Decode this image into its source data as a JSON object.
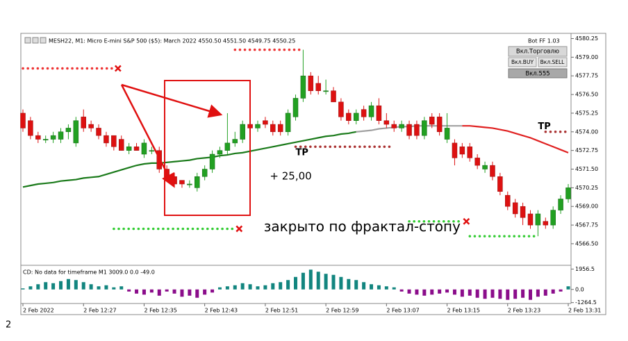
{
  "window": {
    "symbol_line": "MESH22, M1:  Micro E-mini S&P 500 ($5): March 2022  4550.50 4551.50 4549.75 4550.25",
    "bot_label": "Bot FF 1.03",
    "buttons": [
      "Вкл.Торговлю",
      "Вкл.BUY",
      "Вкл.SELL",
      "Вкл.555"
    ],
    "indicator_label": "CD: No data for timeframe M1 3009.0 0.0 -49.0",
    "footer": "2"
  },
  "chart_data": {
    "type": "candlestick",
    "up_color": "#22a022",
    "down_color": "#dd1111",
    "xlim": [
      0,
      72
    ],
    "xticks": [
      {
        "value": 0,
        "label": "2 Feb 2022"
      },
      {
        "value": 8,
        "label": "2 Feb 12:27"
      },
      {
        "value": 16,
        "label": "2 Feb 12:35"
      },
      {
        "value": 24,
        "label": "2 Feb 12:43"
      },
      {
        "value": 32,
        "label": "2 Feb 12:51"
      },
      {
        "value": 40,
        "label": "2 Feb 12:59"
      },
      {
        "value": 48,
        "label": "2 Feb 13:07"
      },
      {
        "value": 56,
        "label": "2 Feb 13:15"
      },
      {
        "value": 64,
        "label": "2 Feb 13:23"
      },
      {
        "value": 72,
        "label": "2 Feb 13:31"
      }
    ],
    "ylim": [
      4565.1,
      4580.6
    ],
    "yticks": [
      4580.25,
      {
        "value": 4579,
        "label": "4579.00"
      },
      4577.75,
      {
        "value": 4576.5,
        "label": "4576.50"
      },
      4575.25,
      {
        "value": 4574,
        "label": "4574.00"
      },
      4572.75,
      {
        "value": 4571.5,
        "label": "4571.50"
      },
      4570.25,
      {
        "value": 4569,
        "label": "4569.00"
      },
      4567.75,
      {
        "value": 4566.5,
        "label": "4566.50"
      }
    ],
    "candles": [
      [
        4575.25,
        4575.5,
        4574.0,
        4574.25
      ],
      [
        4574.75,
        4575.0,
        4573.5,
        4573.75
      ],
      [
        4573.75,
        4574.0,
        4573.25,
        4573.5
      ],
      [
        4573.5,
        4573.75,
        4573.25,
        4573.5
      ],
      [
        4573.5,
        4574.0,
        4573.25,
        4573.75
      ],
      [
        4573.5,
        4574.25,
        4573.25,
        4574.0
      ],
      [
        4574.0,
        4574.5,
        4573.5,
        4574.25
      ],
      [
        4573.25,
        4575.0,
        4573.0,
        4574.75
      ],
      [
        4575.0,
        4575.5,
        4574.0,
        4574.25
      ],
      [
        4574.5,
        4574.75,
        4574.0,
        4574.25
      ],
      [
        4574.25,
        4574.5,
        4573.5,
        4573.75
      ],
      [
        4573.75,
        4574.0,
        4573.0,
        4573.25
      ],
      [
        4573.75,
        4573.75,
        4572.75,
        4573.0
      ],
      [
        4573.5,
        4573.75,
        4572.75,
        4572.75
      ],
      [
        4572.75,
        4573.25,
        4572.5,
        4573.0
      ],
      [
        4573.0,
        4573.25,
        4572.75,
        4572.75
      ],
      [
        4572.5,
        4573.5,
        4572.25,
        4573.25
      ],
      [
        4572.75,
        4573.0,
        4572.5,
        4572.75
      ],
      [
        4572.75,
        4573.0,
        4571.25,
        4571.5
      ],
      [
        4571.5,
        4571.75,
        4571.0,
        4571.0
      ],
      [
        4571.0,
        4571.25,
        4570.25,
        4570.5
      ],
      [
        4570.75,
        4570.75,
        4570.25,
        4570.5
      ],
      [
        4570.5,
        4570.75,
        4570.25,
        4570.5
      ],
      [
        4570.25,
        4571.25,
        4570.0,
        4571.0
      ],
      [
        4571.0,
        4571.75,
        4570.75,
        4571.5
      ],
      [
        4571.5,
        4572.75,
        4571.25,
        4572.5
      ],
      [
        4572.5,
        4573.0,
        4572.25,
        4572.75
      ],
      [
        4572.75,
        4575.25,
        4572.5,
        4573.25
      ],
      [
        4573.25,
        4574.0,
        4573.0,
        4573.5
      ],
      [
        4573.5,
        4574.75,
        4573.25,
        4574.5
      ],
      [
        4574.5,
        4574.75,
        4574.0,
        4574.25
      ],
      [
        4574.25,
        4574.75,
        4574.0,
        4574.5
      ],
      [
        4574.75,
        4575.0,
        4574.25,
        4574.5
      ],
      [
        4574.5,
        4574.75,
        4573.75,
        4574.0
      ],
      [
        4574.5,
        4574.75,
        4573.75,
        4574.0
      ],
      [
        4574.0,
        4575.5,
        4573.75,
        4575.25
      ],
      [
        4575.0,
        4576.5,
        4574.75,
        4576.25
      ],
      [
        4576.25,
        4579.5,
        4576.0,
        4577.75
      ],
      [
        4577.75,
        4578.0,
        4576.5,
        4576.75
      ],
      [
        4577.25,
        4577.75,
        4576.5,
        4576.75
      ],
      [
        4576.75,
        4577.5,
        4576.5,
        4576.75
      ],
      [
        4576.75,
        4577.0,
        4576.0,
        4576.0
      ],
      [
        4576.0,
        4576.25,
        4574.75,
        4575.0
      ],
      [
        4575.25,
        4575.5,
        4574.5,
        4574.75
      ],
      [
        4574.75,
        4575.5,
        4574.5,
        4575.25
      ],
      [
        4575.5,
        4575.75,
        4574.75,
        4575.0
      ],
      [
        4575.0,
        4576.0,
        4574.75,
        4575.75
      ],
      [
        4575.75,
        4576.25,
        4574.5,
        4574.75
      ],
      [
        4574.75,
        4575.25,
        4574.25,
        4574.5
      ],
      [
        4574.5,
        4574.75,
        4574.0,
        4574.25
      ],
      [
        4574.25,
        4574.75,
        4574.0,
        4574.5
      ],
      [
        4574.5,
        4574.75,
        4573.5,
        4573.75
      ],
      [
        4574.5,
        4574.75,
        4573.5,
        4573.75
      ],
      [
        4573.75,
        4575.0,
        4573.5,
        4574.75
      ],
      [
        4575.0,
        4575.25,
        4574.25,
        4574.5
      ],
      [
        4575.0,
        4575.25,
        4573.75,
        4574.0
      ],
      [
        4573.5,
        4575.25,
        4573.25,
        4574.25
      ],
      [
        4573.25,
        4573.5,
        4571.75,
        4572.25
      ],
      [
        4573.0,
        4573.25,
        4572.25,
        4572.5
      ],
      [
        4573.0,
        4573.25,
        4572.0,
        4572.25
      ],
      [
        4572.25,
        4572.5,
        4571.5,
        4571.75
      ],
      [
        4571.5,
        4572.0,
        4571.25,
        4571.75
      ],
      [
        4571.75,
        4572.0,
        4570.75,
        4571.0
      ],
      [
        4571.0,
        4571.25,
        4569.75,
        4570.0
      ],
      [
        4569.75,
        4570.0,
        4568.75,
        4569.0
      ],
      [
        4569.25,
        4569.5,
        4568.25,
        4568.5
      ],
      [
        4569.0,
        4569.25,
        4567.75,
        4568.25
      ],
      [
        4568.5,
        4568.75,
        4567.5,
        4567.75
      ],
      [
        4567.75,
        4568.75,
        4567.0,
        4568.5
      ],
      [
        4568.0,
        4568.25,
        4567.5,
        4567.75
      ],
      [
        4567.75,
        4569.0,
        4567.5,
        4568.75
      ],
      [
        4568.75,
        4569.75,
        4568.5,
        4569.5
      ],
      [
        4569.5,
        4570.5,
        4569.25,
        4570.25
      ]
    ],
    "ma": {
      "values": [
        4570.3,
        4570.4,
        4570.5,
        4570.55,
        4570.6,
        4570.7,
        4570.75,
        4570.8,
        4570.9,
        4570.95,
        4571.0,
        4571.15,
        4571.3,
        4571.45,
        4571.6,
        4571.75,
        4571.85,
        4571.9,
        4571.9,
        4571.95,
        4572.0,
        4572.05,
        4572.1,
        4572.2,
        4572.25,
        4572.3,
        4572.4,
        4572.45,
        4572.55,
        4572.6,
        4572.7,
        4572.8,
        4572.9,
        4573.0,
        4573.1,
        4573.2,
        4573.3,
        4573.4,
        4573.5,
        4573.6,
        4573.7,
        4573.75,
        4573.85,
        4573.9,
        4574.0,
        4574.05,
        4574.1,
        4574.2,
        4574.25,
        4574.3,
        4574.35,
        4574.35,
        4574.4,
        4574.4,
        4574.4,
        4574.4,
        4574.4,
        4574.4,
        4574.4,
        4574.4,
        4574.35,
        4574.3,
        4574.25,
        4574.15,
        4574.05,
        4573.9,
        4573.75,
        4573.6,
        4573.4,
        4573.2,
        4573.0,
        4572.8,
        4572.6
      ],
      "color_changes": [
        {
          "from": 0,
          "color": "#1a7a1a"
        },
        {
          "from": 44,
          "color": "#a0a0a0"
        },
        {
          "from": 58,
          "color": "#e02020"
        }
      ]
    },
    "levels": [
      {
        "price": 4578.25,
        "from": 0,
        "to": 12,
        "color": "#ee3333",
        "end_marker": "cross"
      },
      {
        "price": 4579.5,
        "from": 28,
        "to": 37,
        "color": "#ee3333",
        "end_marker": "none"
      },
      {
        "price": 4567.5,
        "from": 12,
        "to": 28,
        "color": "#33cc33",
        "end_marker": "cross"
      },
      {
        "price": 4573.0,
        "from": 36,
        "to": 49,
        "color": "#aa3333",
        "end_marker": "none"
      },
      {
        "price": 4574.0,
        "from": 69,
        "to": 72,
        "color": "#aa3333",
        "end_marker": "none"
      },
      {
        "price": 4568.0,
        "from": 51,
        "to": 58,
        "color": "#33cc33",
        "end_marker": "cross"
      },
      {
        "price": 4567.0,
        "from": 59,
        "to": 68,
        "color": "#33cc33",
        "end_marker": "none"
      }
    ],
    "annotations": [
      {
        "text": "TP",
        "index": 36,
        "price": 4572.6,
        "color": "#8b1a1a",
        "size": 13
      },
      {
        "text": "TP",
        "index": 68,
        "price": 4574.35,
        "color": "#8b1a1a",
        "size": 13
      },
      {
        "text": "+ 25,00",
        "index": 32.6,
        "price": 4571.0,
        "color": "#dd1111",
        "size": 15
      },
      {
        "text": "закрыто по фрактал-стопу",
        "index": 31.8,
        "price": 4567.6,
        "color": "#dd1111",
        "size": 20
      }
    ],
    "indicator": {
      "ylim": [
        -1350,
        2050
      ],
      "yticks": [
        1956.5,
        {
          "value": 0,
          "label": "0.0"
        },
        -1264.5
      ],
      "pos_color": "#12857f",
      "neg_color": "#8b0d8b",
      "values": [
        100,
        300,
        500,
        700,
        600,
        800,
        1000,
        900,
        700,
        500,
        300,
        400,
        200,
        300,
        -200,
        -400,
        -500,
        -300,
        -600,
        -200,
        -400,
        -700,
        -600,
        -800,
        -500,
        -300,
        200,
        300,
        400,
        600,
        500,
        300,
        400,
        600,
        700,
        900,
        1200,
        1600,
        1900,
        1700,
        1500,
        1400,
        1200,
        1000,
        900,
        700,
        500,
        400,
        300,
        200,
        -200,
        -400,
        -500,
        -600,
        -500,
        -400,
        -300,
        -500,
        -700,
        -600,
        -800,
        -900,
        -800,
        -900,
        -1000,
        -900,
        -800,
        -1000,
        -700,
        -600,
        -400,
        -200,
        300
      ]
    }
  }
}
